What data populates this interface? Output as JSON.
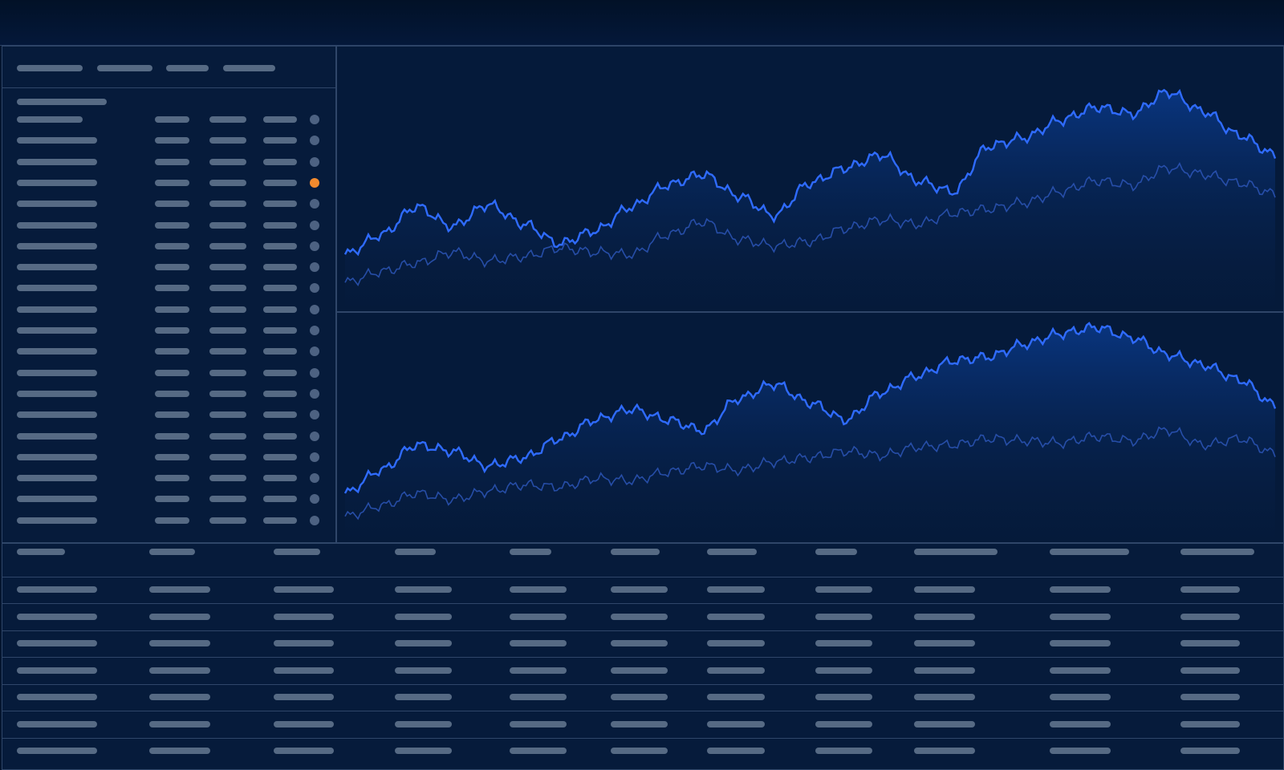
{
  "colors": {
    "background": "#04152f",
    "panel": "#061b3b",
    "border": "#2f4669",
    "placeholder_bar": "#566a84",
    "status_dot": "#4d6282",
    "status_dot_alert": "#f28a2e",
    "series_primary": "#2f6bff",
    "series_secondary": "#2d56b8",
    "area_fill": "#0a3a8c"
  },
  "list": {
    "rows": 20,
    "alert_row_index": 3
  },
  "table": {
    "columns": 11,
    "rows": 7
  },
  "chart_data": [
    {
      "type": "area",
      "series": [
        {
          "values": [
            0.24,
            0.33,
            0.46,
            0.37,
            0.47,
            0.38,
            0.29,
            0.35,
            0.46,
            0.56,
            0.61,
            0.51,
            0.42,
            0.57,
            0.64,
            0.7,
            0.58,
            0.53,
            0.74,
            0.78,
            0.86,
            0.92,
            0.89,
            0.99,
            0.9,
            0.79,
            0.7
          ]
        },
        {
          "values": [
            0.11,
            0.16,
            0.2,
            0.25,
            0.21,
            0.23,
            0.27,
            0.25,
            0.24,
            0.33,
            0.39,
            0.31,
            0.28,
            0.3,
            0.36,
            0.4,
            0.38,
            0.43,
            0.45,
            0.48,
            0.53,
            0.58,
            0.56,
            0.64,
            0.61,
            0.57,
            0.52
          ]
        }
      ]
    },
    {
      "type": "area",
      "series": [
        {
          "values": [
            0.21,
            0.32,
            0.44,
            0.41,
            0.34,
            0.38,
            0.47,
            0.56,
            0.61,
            0.56,
            0.51,
            0.66,
            0.73,
            0.64,
            0.56,
            0.69,
            0.77,
            0.84,
            0.86,
            0.92,
            0.97,
            1.0,
            0.95,
            0.87,
            0.82,
            0.75,
            0.63
          ]
        },
        {
          "values": [
            0.1,
            0.15,
            0.21,
            0.18,
            0.22,
            0.25,
            0.24,
            0.28,
            0.27,
            0.31,
            0.34,
            0.32,
            0.36,
            0.38,
            0.41,
            0.39,
            0.43,
            0.44,
            0.47,
            0.46,
            0.45,
            0.48,
            0.46,
            0.51,
            0.44,
            0.47,
            0.4
          ]
        }
      ]
    }
  ]
}
